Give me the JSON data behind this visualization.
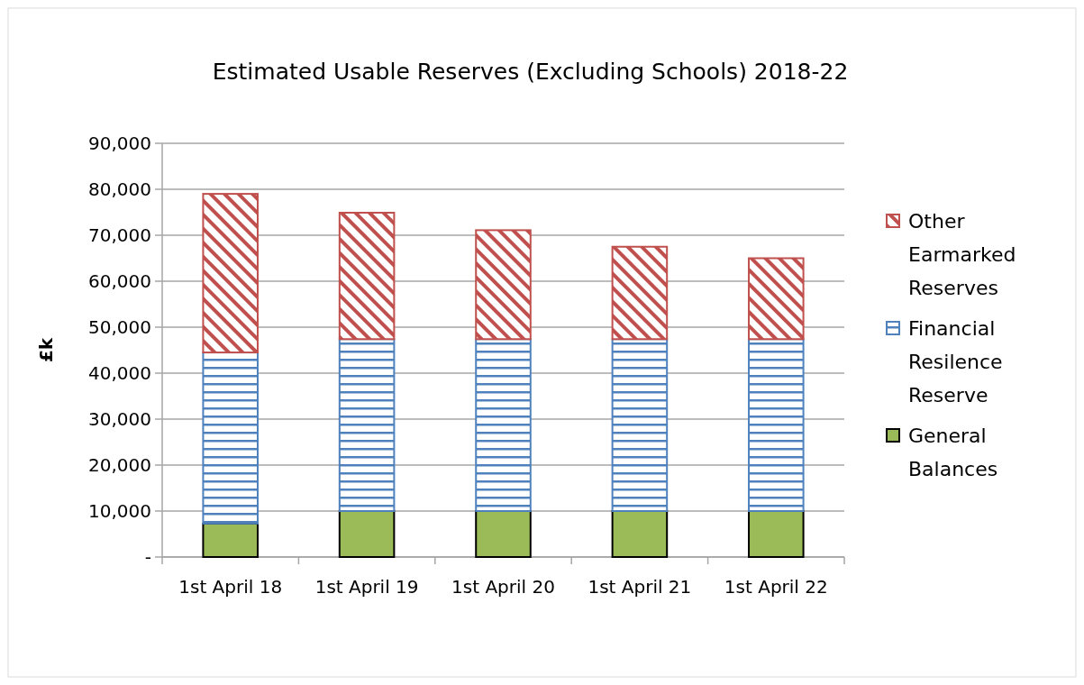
{
  "chart_data": {
    "type": "bar",
    "title": "Estimated Usable Reserves (Excluding Schools) 2018-22",
    "ylabel": "£k",
    "categories": [
      "1st April 18",
      "1st April 19",
      "1st April 20",
      "1st April 21",
      "1st April 22"
    ],
    "stacked": true,
    "series": [
      {
        "name": "General Balances",
        "color": "#9bbb59",
        "values": [
          7300,
          10000,
          10000,
          10000,
          10000
        ]
      },
      {
        "name": "Financial Resilence Reserve",
        "color": "#4f81bd",
        "values": [
          37200,
          37400,
          37400,
          37400,
          37400
        ]
      },
      {
        "name": "Other Earmarked Reserves",
        "color": "#c0504d",
        "values": [
          34500,
          27500,
          23700,
          20100,
          17600
        ]
      }
    ],
    "ylim": [
      0,
      90000
    ],
    "yticks": [
      {
        "value": 0,
        "label": "-"
      },
      {
        "value": 10000,
        "label": "10,000"
      },
      {
        "value": 20000,
        "label": "20,000"
      },
      {
        "value": 30000,
        "label": "30,000"
      },
      {
        "value": 40000,
        "label": "40,000"
      },
      {
        "value": 50000,
        "label": "50,000"
      },
      {
        "value": 60000,
        "label": "60,000"
      },
      {
        "value": 70000,
        "label": "70,000"
      },
      {
        "value": 80000,
        "label": "80,000"
      },
      {
        "value": 90000,
        "label": "90,000"
      }
    ],
    "grid": "y",
    "legend": "right"
  }
}
